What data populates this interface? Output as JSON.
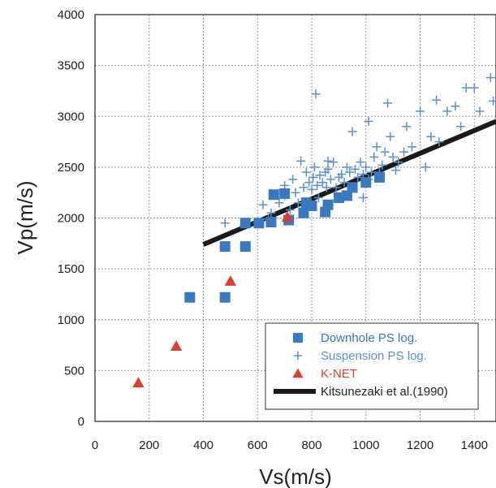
{
  "chart_data": {
    "type": "scatter",
    "title": "",
    "xlabel": "Vs(m/s)",
    "ylabel": "Vp(m/s)",
    "xlim": [
      0,
      1480
    ],
    "ylim": [
      0,
      4000
    ],
    "x_ticks": [
      "0",
      "200",
      "400",
      "600",
      "800",
      "1000",
      "1200",
      "1400"
    ],
    "y_ticks": [
      "0",
      "500",
      "1000",
      "1500",
      "2000",
      "2500",
      "3000",
      "3500",
      "4000"
    ],
    "grid": true,
    "legend_position": "bottom-right",
    "series": [
      {
        "name": "Downhole PS log.",
        "marker": "square",
        "color": "#3a78c0",
        "points": [
          [
            350,
            1220
          ],
          [
            480,
            1220
          ],
          [
            480,
            1720
          ],
          [
            555,
            1720
          ],
          [
            555,
            1950
          ],
          [
            605,
            1950
          ],
          [
            650,
            1960
          ],
          [
            660,
            2230
          ],
          [
            700,
            2240
          ],
          [
            715,
            1980
          ],
          [
            770,
            2050
          ],
          [
            780,
            2150
          ],
          [
            800,
            2120
          ],
          [
            850,
            2060
          ],
          [
            860,
            2130
          ],
          [
            900,
            2200
          ],
          [
            930,
            2220
          ],
          [
            950,
            2300
          ],
          [
            1000,
            2350
          ],
          [
            1050,
            2400
          ]
        ]
      },
      {
        "name": "Suspension PS log.",
        "marker": "plus",
        "color": "#5b8fd0",
        "points": [
          [
            480,
            1950
          ],
          [
            600,
            1960
          ],
          [
            620,
            2130
          ],
          [
            650,
            2050
          ],
          [
            680,
            2150
          ],
          [
            700,
            2220
          ],
          [
            720,
            2080
          ],
          [
            730,
            2380
          ],
          [
            740,
            2250
          ],
          [
            750,
            2150
          ],
          [
            760,
            2560
          ],
          [
            770,
            2300
          ],
          [
            780,
            2450
          ],
          [
            790,
            2350
          ],
          [
            800,
            2280
          ],
          [
            805,
            2400
          ],
          [
            810,
            2500
          ],
          [
            815,
            3220
          ],
          [
            820,
            2320
          ],
          [
            825,
            2200
          ],
          [
            830,
            2420
          ],
          [
            840,
            2350
          ],
          [
            850,
            2450
          ],
          [
            855,
            2300
          ],
          [
            860,
            2480
          ],
          [
            870,
            2380
          ],
          [
            880,
            2550
          ],
          [
            890,
            2300
          ],
          [
            900,
            2400
          ],
          [
            910,
            2430
          ],
          [
            920,
            2350
          ],
          [
            930,
            2500
          ],
          [
            940,
            2450
          ],
          [
            950,
            2850
          ],
          [
            960,
            2480
          ],
          [
            970,
            2400
          ],
          [
            980,
            2550
          ],
          [
            990,
            2200
          ],
          [
            1000,
            2500
          ],
          [
            1010,
            2950
          ],
          [
            1020,
            2450
          ],
          [
            1030,
            2600
          ],
          [
            1040,
            2700
          ],
          [
            1050,
            2450
          ],
          [
            1060,
            2520
          ],
          [
            1070,
            2650
          ],
          [
            1080,
            3130
          ],
          [
            1090,
            2800
          ],
          [
            1100,
            2600
          ],
          [
            1110,
            2470
          ],
          [
            1120,
            2550
          ],
          [
            1140,
            2650
          ],
          [
            1150,
            2900
          ],
          [
            1170,
            2700
          ],
          [
            1200,
            3050
          ],
          [
            1220,
            2500
          ],
          [
            1240,
            2800
          ],
          [
            1260,
            3160
          ],
          [
            1270,
            2750
          ],
          [
            1300,
            3050
          ],
          [
            1330,
            3100
          ],
          [
            1350,
            2900
          ],
          [
            1370,
            3280
          ],
          [
            1400,
            3280
          ],
          [
            1420,
            3050
          ],
          [
            1460,
            3380
          ],
          [
            1470,
            3150
          ],
          [
            700,
            2320
          ],
          [
            860,
            2560
          ],
          [
            640,
            1990
          ],
          [
            990,
            2430
          ],
          [
            1010,
            2380
          ]
        ]
      },
      {
        "name": "K-NET",
        "marker": "triangle",
        "color": "#d9402f",
        "points": [
          [
            160,
            380
          ],
          [
            300,
            740
          ],
          [
            500,
            1380
          ],
          [
            710,
            2010
          ]
        ]
      },
      {
        "name": "Kitsunezaki et al.(1990)",
        "marker": "line",
        "color": "#1a1a1a",
        "points": [
          [
            400,
            1740
          ],
          [
            1480,
            2950
          ]
        ]
      }
    ]
  }
}
